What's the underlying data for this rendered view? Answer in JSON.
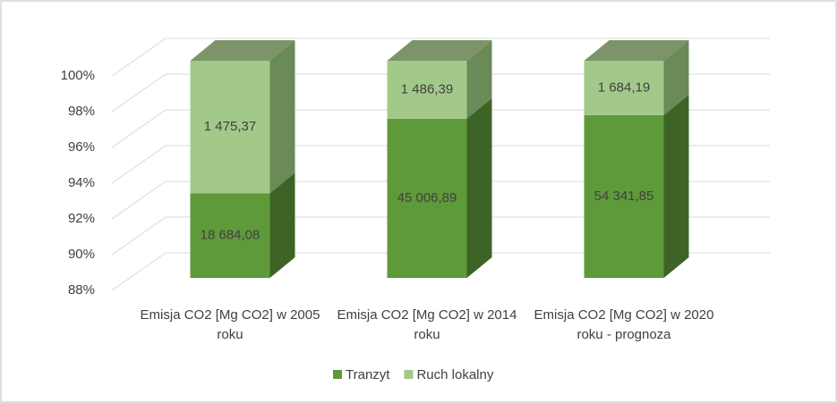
{
  "chart_data": {
    "type": "bar",
    "stacked_percent": true,
    "categories": [
      "Emisja CO2 [Mg CO2] w 2005 roku",
      "Emisja CO2 [Mg CO2] w 2014 roku",
      "Emisja CO2 [Mg CO2] w 2020 roku - prognoza"
    ],
    "series": [
      {
        "name": "Tranzyt",
        "color": "#5f9a3a",
        "side_color": "#3d6426",
        "top_color": "#4f7d33",
        "values": [
          18684.08,
          45006.89,
          54341.85
        ],
        "value_labels": [
          "18 684,08",
          "45 006,89",
          "54 341,85"
        ]
      },
      {
        "name": "Ruch lokalny",
        "color": "#a3c98a",
        "side_color": "#6a8a58",
        "top_color": "#7c9468",
        "values": [
          1475.37,
          1486.39,
          1684.19
        ],
        "value_labels": [
          "1 475,37",
          "1 486,39",
          "1 684,19"
        ]
      }
    ],
    "ylim": [
      88,
      100
    ],
    "yticks": [
      {
        "value": 88,
        "label": "88%"
      },
      {
        "value": 90,
        "label": "90%"
      },
      {
        "value": 92,
        "label": "92%"
      },
      {
        "value": 94,
        "label": "94%"
      },
      {
        "value": 96,
        "label": "96%"
      },
      {
        "value": 98,
        "label": "98%"
      },
      {
        "value": 100,
        "label": "100%"
      }
    ],
    "grid": true,
    "legend": "bottom"
  }
}
